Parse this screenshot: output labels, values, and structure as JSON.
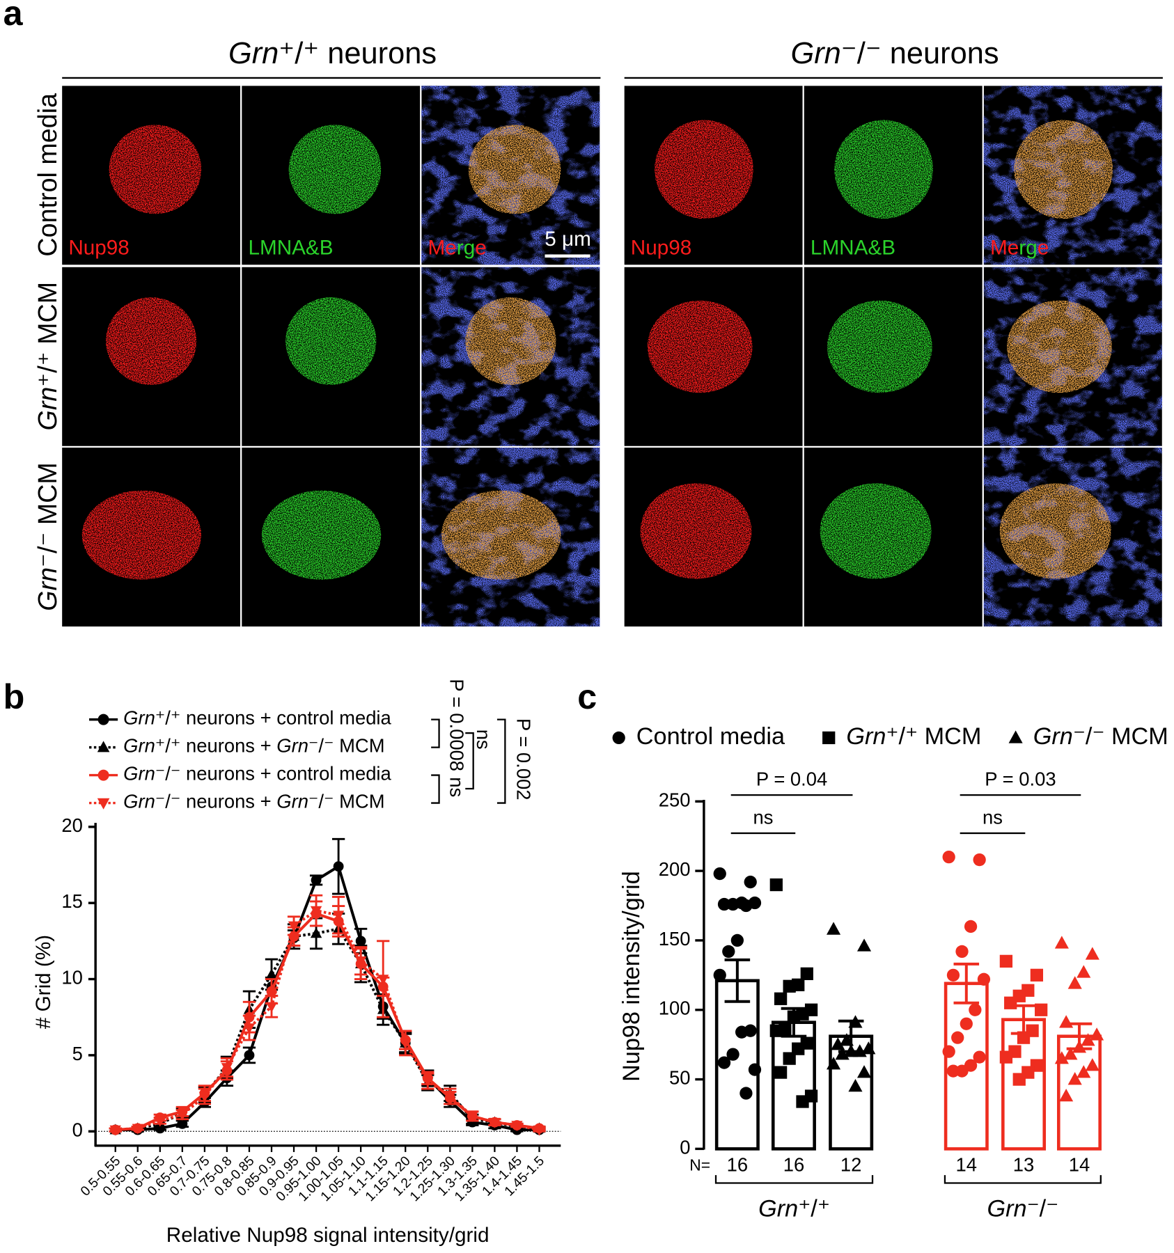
{
  "panel_a": {
    "label": "a",
    "headers": [
      "Grn⁺/⁺ neurons",
      "Grn⁻/⁻ neurons"
    ],
    "rows": [
      "Control media",
      "Grn⁺/⁺ MCM",
      "Grn⁻/⁻ MCM"
    ],
    "channels": [
      "Nup98",
      "LMNA&B",
      "Merge"
    ],
    "scale_bar": "5 μm"
  },
  "chart_data": [
    {
      "type": "line",
      "panel_label": "b",
      "x_label": "Relative Nup98 signal intensity/grid",
      "y_label": "# Grid (%)",
      "categories": [
        "0.5-0.55",
        "0.55-0.6",
        "0.6-0.65",
        "0.65-0.7",
        "0.7-0.75",
        "0.75-0.8",
        "0.8-0.85",
        "0.85-0.9",
        "0.9-0.95",
        "0.95-1.00",
        "1.00-1.05",
        "1.05-1.10",
        "1.1-1.15",
        "1.15-1.20",
        "1.2-1.25",
        "1.25-1.30",
        "1.3-1.35",
        "1.35-1.40",
        "1.4-1.45",
        "1.45-1.5"
      ],
      "ylim": [
        0,
        20
      ],
      "yticks": [
        0,
        5,
        10,
        15,
        20
      ],
      "series": [
        {
          "name": "Grn⁺/⁺ neurons + control media",
          "color": "#000000",
          "marker": "circle",
          "dashed": false,
          "values": [
            0.1,
            0.1,
            0.2,
            0.5,
            1.9,
            3.5,
            5.0,
            9.5,
            12.7,
            16.5,
            17.4,
            12.5,
            8.2,
            5.8,
            3.5,
            2.0,
            0.6,
            0.4,
            0.1,
            0.1
          ],
          "errors": [
            0.1,
            0.1,
            0.1,
            0.2,
            0.3,
            0.5,
            0.5,
            0.6,
            0.5,
            0.3,
            1.8,
            0.8,
            0.8,
            0.7,
            0.5,
            0.4,
            0.2,
            0.2,
            0.1,
            0.1
          ]
        },
        {
          "name": "Grn⁺/⁺ neurons + Grn⁻/⁻ MCM",
          "color": "#000000",
          "marker": "triangle",
          "dashed": true,
          "values": [
            0.1,
            0.2,
            0.5,
            1.2,
            2.4,
            4.2,
            8.0,
            10.3,
            12.8,
            13.0,
            13.3,
            11.0,
            8.0,
            5.8,
            3.2,
            2.5,
            0.8,
            0.6,
            0.3,
            0.2
          ],
          "errors": [
            0.1,
            0.1,
            0.2,
            0.3,
            0.5,
            0.7,
            1.2,
            1.0,
            0.8,
            1.0,
            1.0,
            1.2,
            1.0,
            0.6,
            0.5,
            0.5,
            0.3,
            0.2,
            0.2,
            0.1
          ]
        },
        {
          "name": "Grn⁻/⁻ neurons + control media",
          "color": "#ee2d1f",
          "marker": "circle",
          "dashed": false,
          "values": [
            0.1,
            0.2,
            0.9,
            1.3,
            2.5,
            4.0,
            7.5,
            9.2,
            12.8,
            14.3,
            13.8,
            11.0,
            9.5,
            6.0,
            3.5,
            2.2,
            1.0,
            0.6,
            0.4,
            0.2
          ],
          "errors": [
            0.1,
            0.1,
            0.2,
            0.3,
            0.5,
            0.6,
            1.0,
            0.8,
            0.6,
            0.8,
            1.0,
            1.0,
            0.6,
            0.6,
            0.4,
            0.4,
            0.3,
            0.2,
            0.1,
            0.1
          ]
        },
        {
          "name": "Grn⁻/⁻ neurons + Grn⁻/⁻ MCM",
          "color": "#ee2d1f",
          "marker": "triangle-down",
          "dashed": true,
          "values": [
            0.1,
            0.2,
            0.7,
            1.1,
            2.3,
            4.2,
            6.8,
            8.2,
            13.5,
            14.5,
            14.2,
            11.2,
            10.0,
            5.8,
            3.3,
            2.3,
            1.0,
            0.6,
            0.4,
            0.1
          ],
          "errors": [
            0.1,
            0.1,
            0.2,
            0.3,
            0.5,
            0.6,
            0.8,
            0.7,
            0.6,
            1.0,
            1.2,
            0.9,
            2.5,
            0.8,
            0.5,
            0.5,
            0.3,
            0.2,
            0.1,
            0.1
          ]
        }
      ],
      "stats": [
        "P = 0.0008",
        "ns",
        "ns",
        "P = 0.002"
      ]
    },
    {
      "type": "bar",
      "panel_label": "c",
      "y_label": "Nup98 intensity/grid",
      "n_label": "N=",
      "categories": [
        "16",
        "16",
        "12",
        "14",
        "13",
        "14"
      ],
      "ylim": [
        0,
        250
      ],
      "yticks": [
        0,
        50,
        100,
        150,
        200,
        250
      ],
      "legend": [
        {
          "name": "Control media",
          "marker": "circle"
        },
        {
          "name": "Grn⁺/⁺ MCM",
          "marker": "square"
        },
        {
          "name": "Grn⁻/⁻ MCM",
          "marker": "triangle"
        }
      ],
      "colors": [
        "#000000",
        "#000000",
        "#000000",
        "#ee2d1f",
        "#ee2d1f",
        "#ee2d1f"
      ],
      "point_markers": [
        "circle",
        "square",
        "triangle",
        "circle",
        "square",
        "triangle"
      ],
      "values": [
        121,
        91,
        81,
        119,
        93,
        81
      ],
      "errors": [
        15,
        10,
        11,
        14,
        10,
        9
      ],
      "points": [
        [
          198,
          192,
          177,
          176,
          176,
          177,
          175,
          150,
          142,
          125,
          85,
          84,
          68,
          62,
          57,
          40
        ],
        [
          190,
          126,
          118,
          117,
          108,
          100,
          97,
          95,
          86,
          85,
          76,
          72,
          65,
          55,
          38,
          34
        ],
        [
          158,
          146,
          91,
          78,
          75,
          72,
          70,
          70,
          68,
          61,
          55,
          45
        ],
        [
          210,
          208,
          160,
          142,
          125,
          122,
          100,
          90,
          80,
          70,
          66,
          60,
          56,
          56
        ],
        [
          135,
          125,
          114,
          110,
          105,
          100,
          85,
          80,
          70,
          66,
          60,
          55,
          50
        ],
        [
          148,
          140,
          127,
          119,
          91,
          82,
          78,
          73,
          68,
          65,
          60,
          55,
          50,
          38
        ]
      ],
      "groups": [
        {
          "label": "Grn⁺/⁺",
          "categories": [
            0,
            1,
            2
          ]
        },
        {
          "label": "Grn⁻/⁻",
          "categories": [
            3,
            4,
            5
          ]
        }
      ],
      "comparisons": [
        {
          "label": "P = 0.04",
          "from": 0,
          "to": 2
        },
        {
          "label": "ns",
          "from": 0,
          "to": 1
        },
        {
          "label": "P = 0.03",
          "from": 3,
          "to": 5
        },
        {
          "label": "ns",
          "from": 3,
          "to": 4
        }
      ]
    }
  ]
}
